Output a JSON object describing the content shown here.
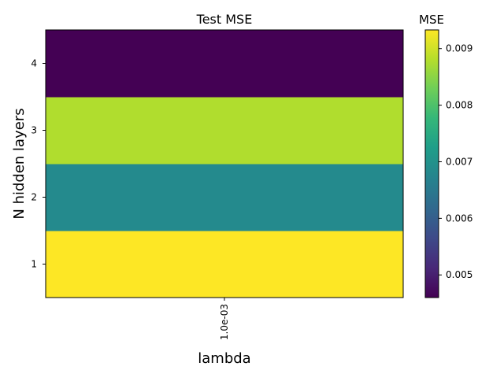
{
  "chart_data": {
    "type": "heatmap",
    "title": "Test MSE",
    "xlabel": "lambda",
    "ylabel": "N hidden layers",
    "x_categories": [
      "1.0e-03"
    ],
    "y_categories": [
      "1",
      "2",
      "3",
      "4"
    ],
    "values": [
      {
        "y": "1",
        "x": "1.0e-03",
        "value": 0.00933
      },
      {
        "y": "2",
        "x": "1.0e-03",
        "value": 0.00685
      },
      {
        "y": "3",
        "x": "1.0e-03",
        "value": 0.00877
      },
      {
        "y": "4",
        "x": "1.0e-03",
        "value": 0.0046
      }
    ],
    "colormap": "viridis",
    "colorbar": {
      "label": "MSE",
      "min": 0.0046,
      "max": 0.00933,
      "ticks": [
        0.005,
        0.006,
        0.007,
        0.008,
        0.009
      ],
      "tick_labels": [
        "0.005",
        "0.006",
        "0.007",
        "0.008",
        "0.009"
      ]
    }
  }
}
